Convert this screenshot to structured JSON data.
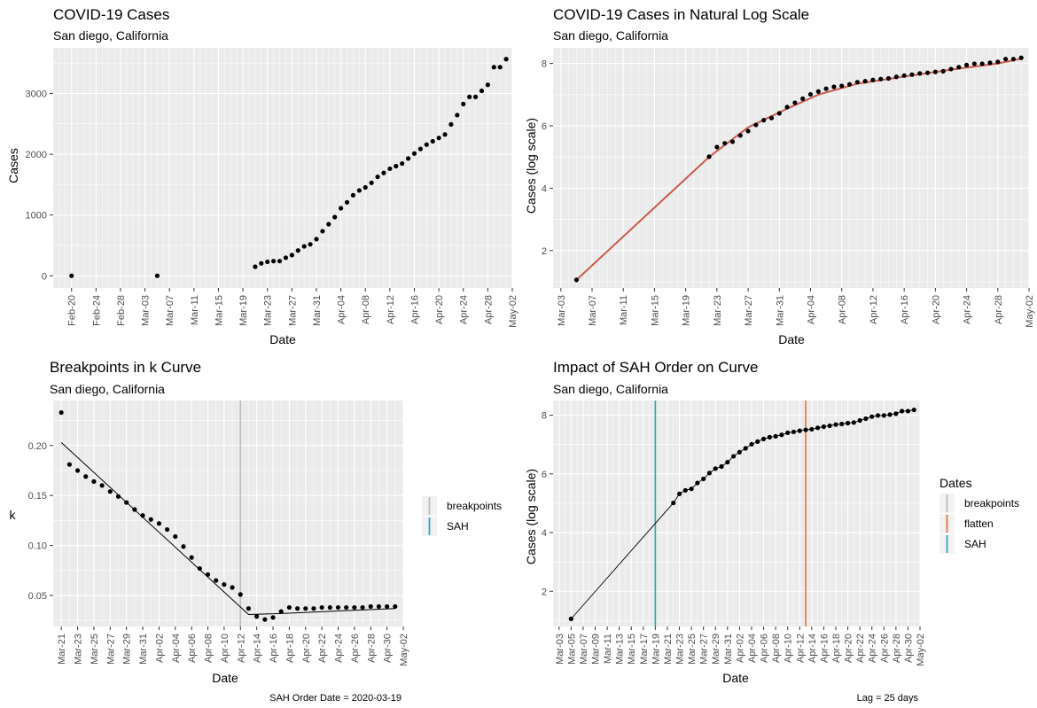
{
  "chart_data": [
    {
      "type": "scatter",
      "title": "COVID-19 Cases",
      "subtitle": "San diego, California",
      "xlabel": "Date",
      "ylabel": "Cases",
      "x_ticks": [
        "Feb-20",
        "Feb-24",
        "Feb-28",
        "Mar-03",
        "Mar-07",
        "Mar-11",
        "Mar-15",
        "Mar-19",
        "Mar-23",
        "Mar-27",
        "Mar-31",
        "Apr-04",
        "Apr-08",
        "Apr-12",
        "Apr-16",
        "Apr-20",
        "Apr-24",
        "Apr-28",
        "May-02"
      ],
      "y_ticks": [
        0,
        1000,
        2000,
        3000
      ],
      "xlim": [
        "2020-02-17",
        "2020-05-02"
      ],
      "ylim": [
        -200,
        3750
      ],
      "series": [
        {
          "points": [
            [
              "2020-02-20",
              1
            ],
            [
              "2020-03-05",
              1
            ],
            [
              "2020-03-21",
              150
            ],
            [
              "2020-03-22",
              205
            ],
            [
              "2020-03-23",
              230
            ],
            [
              "2020-03-24",
              242
            ],
            [
              "2020-03-25",
              242
            ],
            [
              "2020-03-26",
              297
            ],
            [
              "2020-03-27",
              341
            ],
            [
              "2020-03-28",
              417
            ],
            [
              "2020-03-29",
              484
            ],
            [
              "2020-03-30",
              519
            ],
            [
              "2020-03-31",
              603
            ],
            [
              "2020-04-01",
              734
            ],
            [
              "2020-04-02",
              849
            ],
            [
              "2020-04-03",
              966
            ],
            [
              "2020-04-04",
              1112
            ],
            [
              "2020-04-05",
              1209
            ],
            [
              "2020-04-06",
              1326
            ],
            [
              "2020-04-07",
              1404
            ],
            [
              "2020-04-08",
              1454
            ],
            [
              "2020-04-09",
              1530
            ],
            [
              "2020-04-10",
              1628
            ],
            [
              "2020-04-11",
              1693
            ],
            [
              "2020-04-12",
              1761
            ],
            [
              "2020-04-13",
              1804
            ],
            [
              "2020-04-14",
              1847
            ],
            [
              "2020-04-15",
              1930
            ],
            [
              "2020-04-16",
              2012
            ],
            [
              "2020-04-17",
              2087
            ],
            [
              "2020-04-18",
              2158
            ],
            [
              "2020-04-19",
              2213
            ],
            [
              "2020-04-20",
              2268
            ],
            [
              "2020-04-21",
              2325
            ],
            [
              "2020-04-22",
              2491
            ],
            [
              "2020-04-23",
              2643
            ],
            [
              "2020-04-24",
              2826
            ],
            [
              "2020-04-25",
              2943
            ],
            [
              "2020-04-26",
              2943
            ],
            [
              "2020-04-27",
              3043
            ],
            [
              "2020-04-28",
              3141
            ],
            [
              "2020-04-29",
              3432
            ],
            [
              "2020-04-30",
              3432
            ],
            [
              "2020-05-01",
              3564
            ]
          ]
        }
      ]
    },
    {
      "type": "line",
      "title": "COVID-19 Cases in Natural Log Scale",
      "subtitle": "San diego, California",
      "xlabel": "Date",
      "ylabel": "Cases (log scale)",
      "x_ticks": [
        "Mar-03",
        "Mar-07",
        "Mar-11",
        "Mar-15",
        "Mar-19",
        "Mar-23",
        "Mar-27",
        "Mar-31",
        "Apr-04",
        "Apr-08",
        "Apr-12",
        "Apr-16",
        "Apr-20",
        "Apr-24",
        "Apr-28",
        "May-02"
      ],
      "y_ticks": [
        2,
        4,
        6,
        8
      ],
      "xlim": [
        "2020-03-02",
        "2020-05-02"
      ],
      "ylim": [
        0.8,
        8.5
      ],
      "line_color": "#cc5a4e",
      "series": [
        {
          "points": [
            [
              "2020-03-05",
              1.06
            ],
            [
              "2020-03-22",
              5.01
            ],
            [
              "2020-03-23",
              5.32
            ],
            [
              "2020-03-24",
              5.44
            ],
            [
              "2020-03-25",
              5.49
            ],
            [
              "2020-03-26",
              5.69
            ],
            [
              "2020-03-27",
              5.83
            ],
            [
              "2020-03-28",
              6.03
            ],
            [
              "2020-03-29",
              6.18
            ],
            [
              "2020-03-30",
              6.25
            ],
            [
              "2020-03-31",
              6.4
            ],
            [
              "2020-04-01",
              6.6
            ],
            [
              "2020-04-02",
              6.74
            ],
            [
              "2020-04-03",
              6.87
            ],
            [
              "2020-04-04",
              7.01
            ],
            [
              "2020-04-05",
              7.1
            ],
            [
              "2020-04-06",
              7.19
            ],
            [
              "2020-04-07",
              7.25
            ],
            [
              "2020-04-08",
              7.28
            ],
            [
              "2020-04-09",
              7.33
            ],
            [
              "2020-04-10",
              7.4
            ],
            [
              "2020-04-11",
              7.43
            ],
            [
              "2020-04-12",
              7.47
            ],
            [
              "2020-04-13",
              7.5
            ],
            [
              "2020-04-14",
              7.52
            ],
            [
              "2020-04-15",
              7.57
            ],
            [
              "2020-04-16",
              7.61
            ],
            [
              "2020-04-17",
              7.64
            ],
            [
              "2020-04-18",
              7.68
            ],
            [
              "2020-04-19",
              7.7
            ],
            [
              "2020-04-20",
              7.73
            ],
            [
              "2020-04-21",
              7.75
            ],
            [
              "2020-04-22",
              7.82
            ],
            [
              "2020-04-23",
              7.88
            ],
            [
              "2020-04-24",
              7.95
            ],
            [
              "2020-04-25",
              7.99
            ],
            [
              "2020-04-26",
              7.99
            ],
            [
              "2020-04-27",
              8.02
            ],
            [
              "2020-04-28",
              8.05
            ],
            [
              "2020-04-29",
              8.14
            ],
            [
              "2020-04-30",
              8.14
            ],
            [
              "2020-05-01",
              8.18
            ]
          ]
        }
      ],
      "fit": [
        [
          "2020-03-05",
          1.06
        ],
        [
          "2020-03-22",
          5.0
        ],
        [
          "2020-03-27",
          5.95
        ],
        [
          "2020-04-01",
          6.55
        ],
        [
          "2020-04-05",
          7.0
        ],
        [
          "2020-04-10",
          7.35
        ],
        [
          "2020-04-16",
          7.58
        ],
        [
          "2020-04-22",
          7.8
        ],
        [
          "2020-04-28",
          8.0
        ],
        [
          "2020-05-01",
          8.15
        ]
      ]
    },
    {
      "type": "scatter",
      "title": "Breakpoints in k Curve",
      "subtitle": "San diego, California",
      "xlabel": "Date",
      "ylabel": "k",
      "caption": "SAH Order Date = 2020-03-19",
      "x_ticks": [
        "Mar-21",
        "Mar-23",
        "Mar-25",
        "Mar-27",
        "Mar-29",
        "Mar-31",
        "Apr-02",
        "Apr-04",
        "Apr-06",
        "Apr-08",
        "Apr-10",
        "Apr-12",
        "Apr-14",
        "Apr-16",
        "Apr-18",
        "Apr-20",
        "Apr-22",
        "Apr-24",
        "Apr-26",
        "Apr-28",
        "Apr-30",
        "May-02"
      ],
      "y_ticks": [
        0.05,
        0.1,
        0.15,
        0.2
      ],
      "xlim": [
        "2020-03-20",
        "2020-05-02"
      ],
      "ylim": [
        0.019,
        0.245
      ],
      "legend": [
        {
          "label": "breakpoints",
          "color": "#bdbdbd"
        },
        {
          "label": "SAH",
          "color": "#31a0c8"
        }
      ],
      "vlines": [
        {
          "date": "2020-04-12",
          "color": "#bdbdbd"
        }
      ],
      "series": [
        {
          "points": [
            [
              "2020-03-21",
              0.233
            ],
            [
              "2020-03-22",
              0.181
            ],
            [
              "2020-03-23",
              0.175
            ],
            [
              "2020-03-24",
              0.169
            ],
            [
              "2020-03-25",
              0.164
            ],
            [
              "2020-03-26",
              0.16
            ],
            [
              "2020-03-27",
              0.154
            ],
            [
              "2020-03-28",
              0.149
            ],
            [
              "2020-03-29",
              0.143
            ],
            [
              "2020-03-30",
              0.136
            ],
            [
              "2020-03-31",
              0.13
            ],
            [
              "2020-04-01",
              0.126
            ],
            [
              "2020-04-02",
              0.122
            ],
            [
              "2020-04-03",
              0.116
            ],
            [
              "2020-04-04",
              0.109
            ],
            [
              "2020-04-05",
              0.099
            ],
            [
              "2020-04-06",
              0.088
            ],
            [
              "2020-04-07",
              0.077
            ],
            [
              "2020-04-08",
              0.071
            ],
            [
              "2020-04-09",
              0.065
            ],
            [
              "2020-04-10",
              0.061
            ],
            [
              "2020-04-11",
              0.058
            ],
            [
              "2020-04-12",
              0.051
            ],
            [
              "2020-04-13",
              0.037
            ],
            [
              "2020-04-14",
              0.029
            ],
            [
              "2020-04-15",
              0.026
            ],
            [
              "2020-04-16",
              0.028
            ],
            [
              "2020-04-17",
              0.034
            ],
            [
              "2020-04-18",
              0.038
            ],
            [
              "2020-04-19",
              0.037
            ],
            [
              "2020-04-20",
              0.037
            ],
            [
              "2020-04-21",
              0.037
            ],
            [
              "2020-04-22",
              0.038
            ],
            [
              "2020-04-23",
              0.038
            ],
            [
              "2020-04-24",
              0.038
            ],
            [
              "2020-04-25",
              0.038
            ],
            [
              "2020-04-26",
              0.038
            ],
            [
              "2020-04-27",
              0.038
            ],
            [
              "2020-04-28",
              0.039
            ],
            [
              "2020-04-29",
              0.039
            ],
            [
              "2020-04-30",
              0.039
            ],
            [
              "2020-05-01",
              0.039
            ]
          ]
        }
      ],
      "fit": [
        [
          "2020-03-21",
          0.203
        ],
        [
          "2020-04-13",
          0.031
        ],
        [
          "2020-04-17",
          0.032
        ],
        [
          "2020-05-01",
          0.037
        ]
      ]
    },
    {
      "type": "scatter",
      "title": "Impact of SAH Order on Curve",
      "subtitle": "San diego, California",
      "xlabel": "Date",
      "ylabel": "Cases (log scale)",
      "caption": "Lag = 25 days",
      "legend_title": "Dates",
      "legend": [
        {
          "label": "breakpoints",
          "color": "#bdbdbd"
        },
        {
          "label": "flatten",
          "color": "#e8723e"
        },
        {
          "label": "SAH",
          "color": "#31a0c8"
        }
      ],
      "x_ticks": [
        "Mar-03",
        "Mar-05",
        "Mar-07",
        "Mar-09",
        "Mar-11",
        "Mar-13",
        "Mar-15",
        "Mar-17",
        "Mar-19",
        "Mar-21",
        "Mar-23",
        "Mar-25",
        "Mar-27",
        "Mar-29",
        "Mar-31",
        "Apr-02",
        "Apr-04",
        "Apr-06",
        "Apr-08",
        "Apr-10",
        "Apr-12",
        "Apr-14",
        "Apr-16",
        "Apr-18",
        "Apr-20",
        "Apr-22",
        "Apr-24",
        "Apr-26",
        "Apr-28",
        "Apr-30",
        "May-02"
      ],
      "y_ticks": [
        2,
        4,
        6,
        8
      ],
      "xlim": [
        "2020-03-02",
        "2020-05-02"
      ],
      "ylim": [
        0.8,
        8.5
      ],
      "vlines": [
        {
          "date": "2020-03-19",
          "color": "#31a0c8"
        },
        {
          "date": "2020-04-13",
          "color": "#e8723e"
        }
      ],
      "series": [
        {
          "points": [
            [
              "2020-03-05",
              1.06
            ],
            [
              "2020-03-22",
              5.01
            ],
            [
              "2020-03-23",
              5.32
            ],
            [
              "2020-03-24",
              5.44
            ],
            [
              "2020-03-25",
              5.49
            ],
            [
              "2020-03-26",
              5.69
            ],
            [
              "2020-03-27",
              5.83
            ],
            [
              "2020-03-28",
              6.03
            ],
            [
              "2020-03-29",
              6.18
            ],
            [
              "2020-03-30",
              6.25
            ],
            [
              "2020-03-31",
              6.4
            ],
            [
              "2020-04-01",
              6.6
            ],
            [
              "2020-04-02",
              6.74
            ],
            [
              "2020-04-03",
              6.87
            ],
            [
              "2020-04-04",
              7.01
            ],
            [
              "2020-04-05",
              7.1
            ],
            [
              "2020-04-06",
              7.19
            ],
            [
              "2020-04-07",
              7.25
            ],
            [
              "2020-04-08",
              7.28
            ],
            [
              "2020-04-09",
              7.33
            ],
            [
              "2020-04-10",
              7.4
            ],
            [
              "2020-04-11",
              7.43
            ],
            [
              "2020-04-12",
              7.47
            ],
            [
              "2020-04-13",
              7.5
            ],
            [
              "2020-04-14",
              7.52
            ],
            [
              "2020-04-15",
              7.57
            ],
            [
              "2020-04-16",
              7.61
            ],
            [
              "2020-04-17",
              7.64
            ],
            [
              "2020-04-18",
              7.68
            ],
            [
              "2020-04-19",
              7.7
            ],
            [
              "2020-04-20",
              7.73
            ],
            [
              "2020-04-21",
              7.75
            ],
            [
              "2020-04-22",
              7.82
            ],
            [
              "2020-04-23",
              7.88
            ],
            [
              "2020-04-24",
              7.95
            ],
            [
              "2020-04-25",
              7.99
            ],
            [
              "2020-04-26",
              7.99
            ],
            [
              "2020-04-27",
              8.02
            ],
            [
              "2020-04-28",
              8.05
            ],
            [
              "2020-04-29",
              8.14
            ],
            [
              "2020-04-30",
              8.14
            ],
            [
              "2020-05-01",
              8.18
            ]
          ]
        }
      ],
      "connect_line": true
    }
  ]
}
